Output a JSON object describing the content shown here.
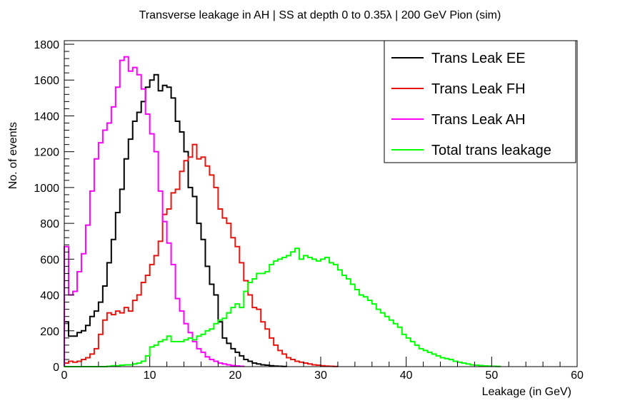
{
  "chart_data": {
    "type": "step-histogram",
    "title": "Transverse leakage in AH | SS at depth 0 to 0.35λ | 200 GeV Pion (sim)",
    "xlabel": "Leakage (in GeV)",
    "ylabel": "No. of events",
    "xlim": [
      0,
      60
    ],
    "ylim": [
      0,
      1820
    ],
    "x_ticks": [
      0,
      10,
      20,
      30,
      40,
      50,
      60
    ],
    "y_ticks": [
      0,
      200,
      400,
      600,
      800,
      1000,
      1200,
      1400,
      1600,
      1800
    ],
    "bin_width": 0.5,
    "legend_position": "top-right",
    "grid": false,
    "series": [
      {
        "name": "Trans Leak EE",
        "color": "#000000",
        "bin_start": 0,
        "values": [
          250,
          170,
          170,
          190,
          200,
          230,
          280,
          310,
          360,
          450,
          580,
          710,
          860,
          990,
          1160,
          1270,
          1370,
          1420,
          1480,
          1560,
          1600,
          1630,
          1540,
          1570,
          1560,
          1500,
          1370,
          1310,
          1200,
          1000,
          950,
          800,
          710,
          560,
          460,
          400,
          250,
          160,
          130,
          100,
          80,
          60,
          40,
          30,
          20,
          15,
          10,
          8,
          5,
          3,
          2,
          1
        ]
      },
      {
        "name": "Trans Leak FH",
        "color": "#e8130d",
        "bin_start": 0,
        "values": [
          20,
          30,
          25,
          30,
          40,
          50,
          70,
          100,
          180,
          260,
          300,
          290,
          310,
          300,
          330,
          310,
          370,
          400,
          470,
          510,
          570,
          620,
          700,
          850,
          880,
          970,
          990,
          1090,
          1150,
          1170,
          1240,
          1160,
          1170,
          1120,
          1070,
          1000,
          880,
          830,
          800,
          720,
          670,
          580,
          480,
          400,
          330,
          320,
          250,
          210,
          160,
          120,
          90,
          70,
          50,
          40,
          30,
          25,
          20,
          15,
          10,
          8,
          5,
          3,
          2,
          1
        ]
      },
      {
        "name": "Trans Leak AH",
        "color": "#ff00ff",
        "bin_start": 0,
        "values": [
          670,
          400,
          420,
          530,
          630,
          790,
          980,
          1160,
          1250,
          1320,
          1360,
          1450,
          1560,
          1710,
          1730,
          1650,
          1670,
          1630,
          1550,
          1410,
          1300,
          1200,
          980,
          810,
          690,
          570,
          380,
          310,
          240,
          190,
          140,
          100,
          80,
          55,
          40,
          30,
          20,
          15,
          10,
          6,
          4,
          2
        ]
      },
      {
        "name": "Total trans leakage",
        "color": "#00ff00",
        "bin_start": 0,
        "values": [
          0,
          0,
          0,
          0,
          0,
          0,
          0,
          0,
          0,
          0,
          2,
          5,
          5,
          8,
          10,
          10,
          15,
          20,
          30,
          60,
          110,
          120,
          140,
          150,
          170,
          140,
          140,
          140,
          150,
          160,
          150,
          170,
          180,
          200,
          210,
          240,
          260,
          270,
          300,
          330,
          350,
          330,
          420,
          470,
          490,
          520,
          520,
          530,
          570,
          590,
          600,
          610,
          620,
          640,
          660,
          600,
          620,
          610,
          600,
          590,
          600,
          610,
          580,
          570,
          540,
          510,
          490,
          460,
          430,
          400,
          390,
          370,
          350,
          320,
          300,
          280,
          260,
          240,
          220,
          180,
          160,
          140,
          120,
          100,
          90,
          80,
          70,
          60,
          50,
          45,
          40,
          30,
          25,
          20,
          15,
          10,
          8,
          6,
          4,
          3,
          2,
          1
        ]
      }
    ]
  }
}
